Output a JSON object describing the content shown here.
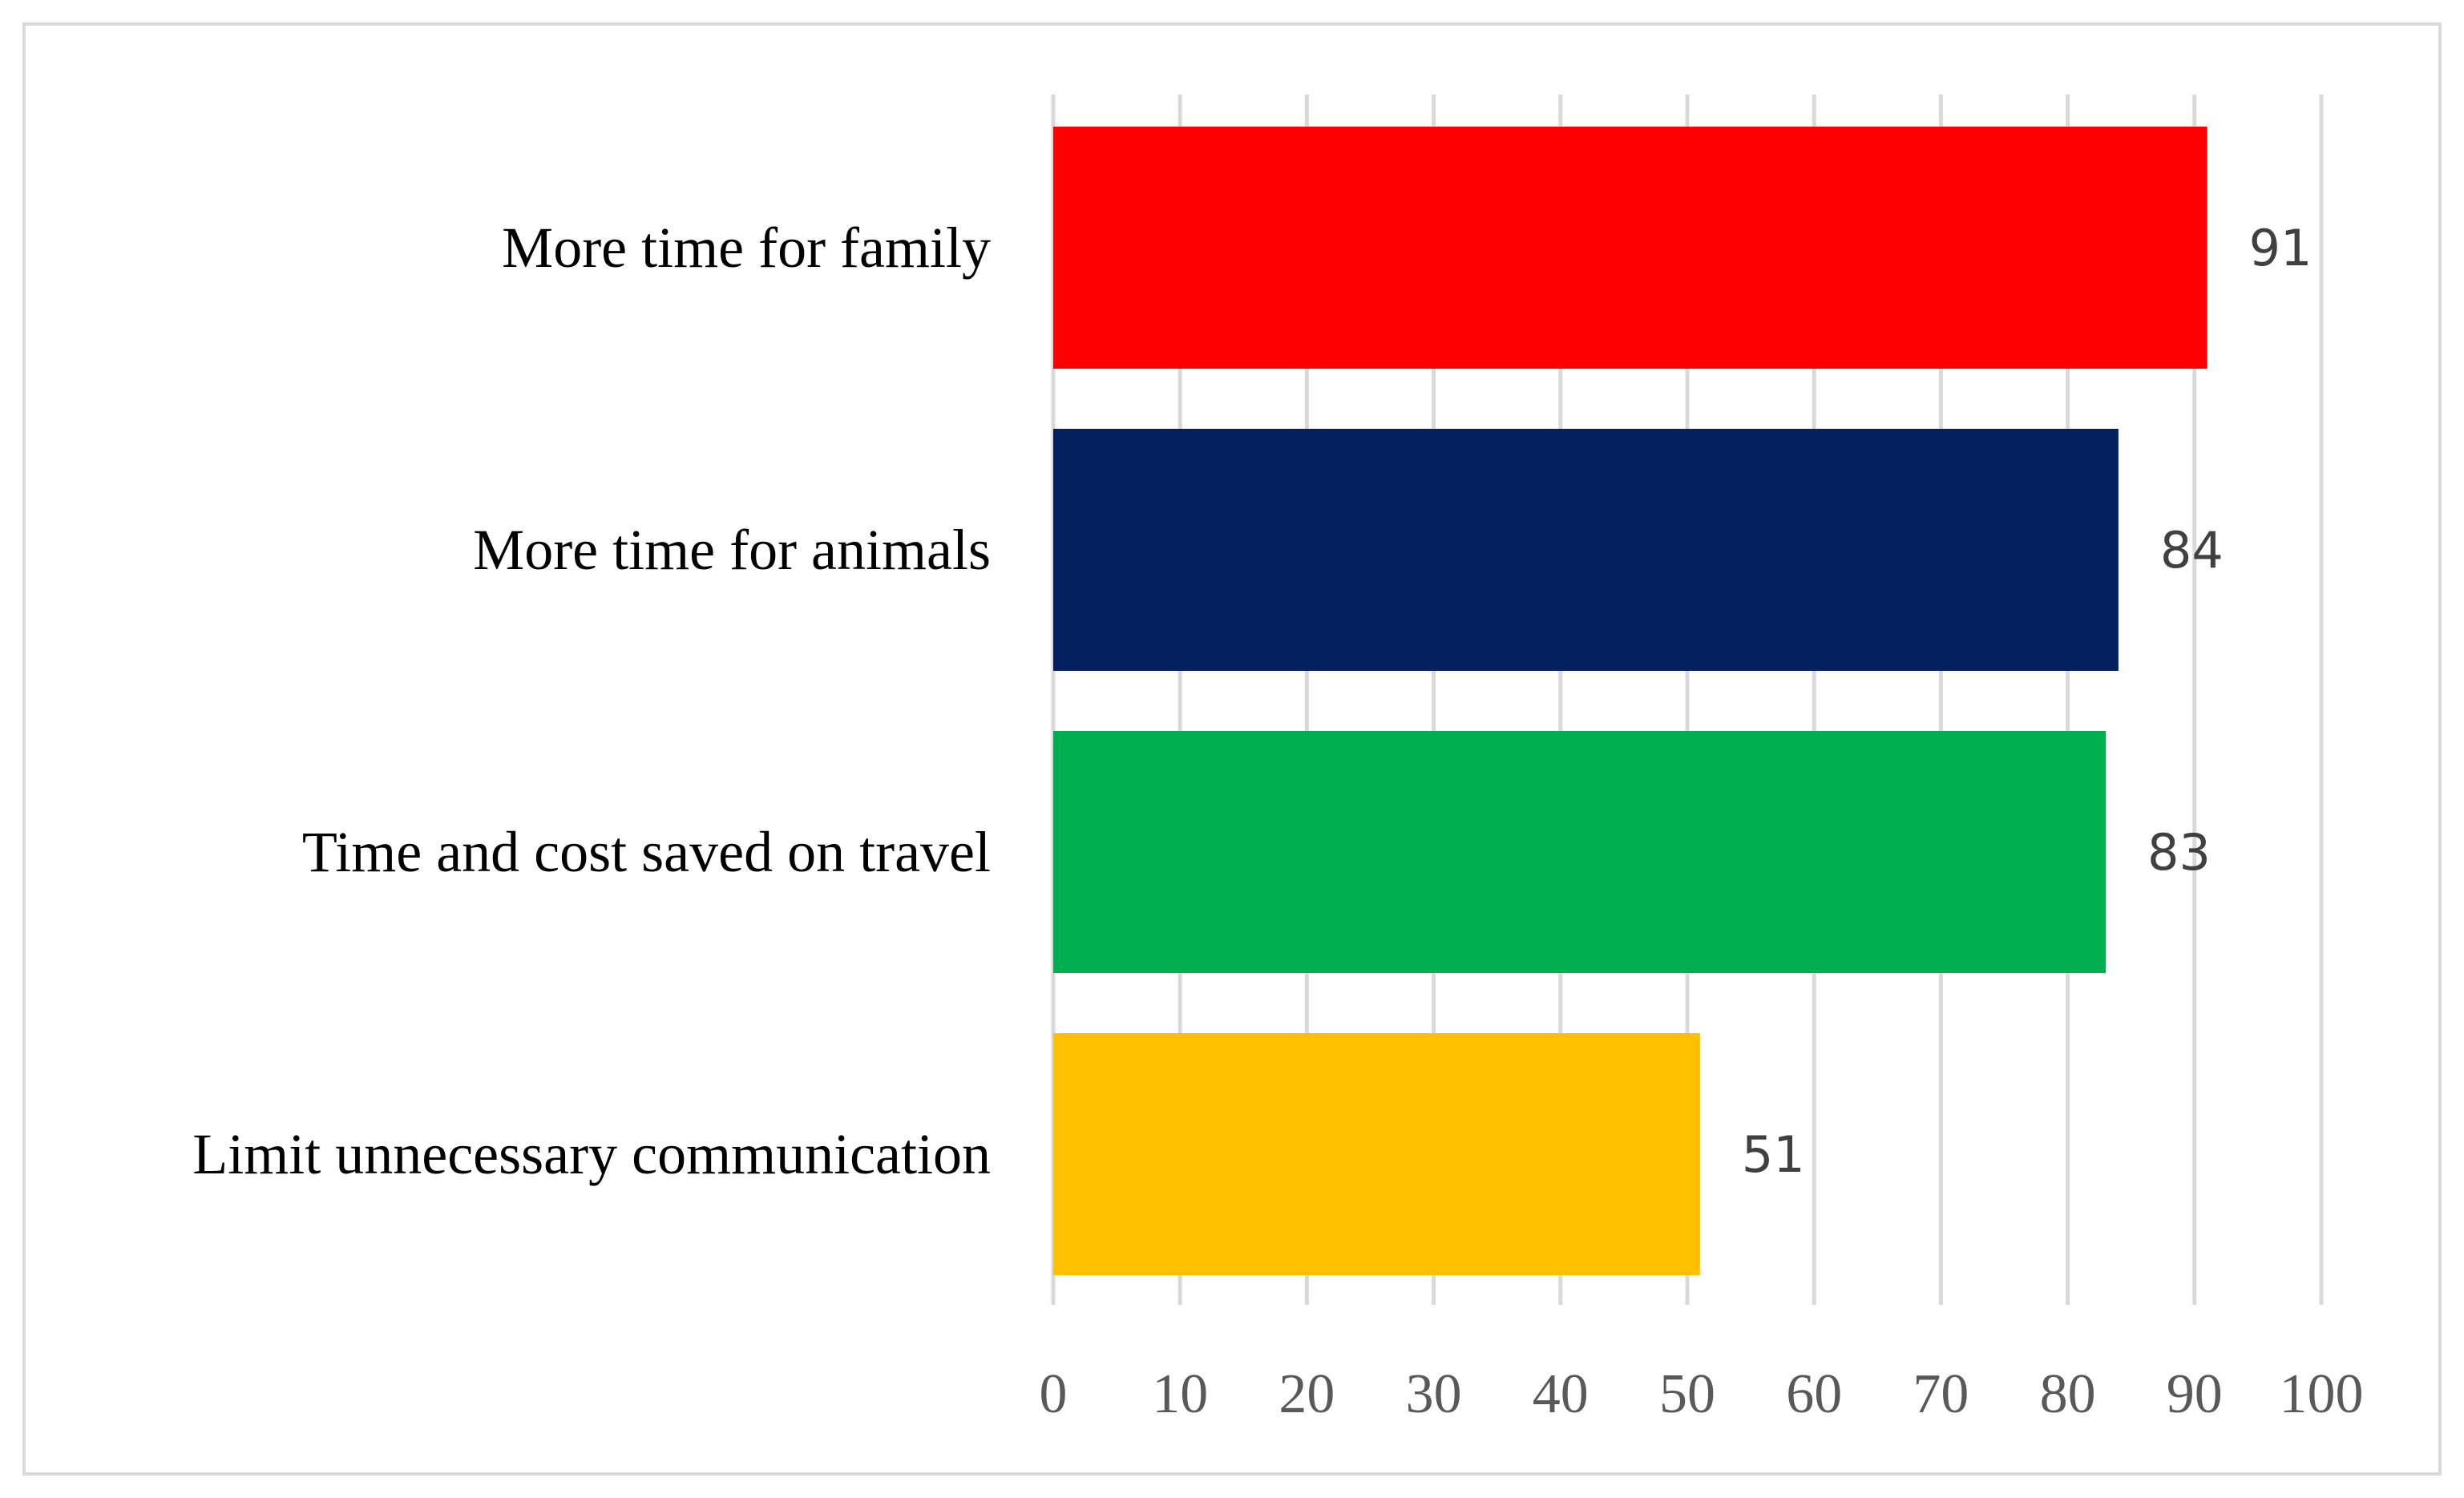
{
  "chart_data": {
    "type": "bar",
    "orientation": "horizontal",
    "title": "",
    "xlabel": "",
    "ylabel": "",
    "categories": [
      "More time for family",
      "More time for animals",
      "Time and cost saved on travel",
      "Limit unnecessary communication"
    ],
    "values": [
      91,
      84,
      83,
      51
    ],
    "value_labels": [
      "91",
      "84",
      "83",
      "51"
    ],
    "colors": [
      "#ff0000",
      "#03215f",
      "#00ae50",
      "#ffc000"
    ],
    "xlim": [
      0,
      100
    ],
    "xticks": [
      0,
      10,
      20,
      30,
      40,
      50,
      60,
      70,
      80,
      90,
      100
    ],
    "xtick_labels": [
      "0",
      "10",
      "20",
      "30",
      "40",
      "50",
      "60",
      "70",
      "80",
      "90",
      "100"
    ],
    "grid": true,
    "legend": "none"
  }
}
